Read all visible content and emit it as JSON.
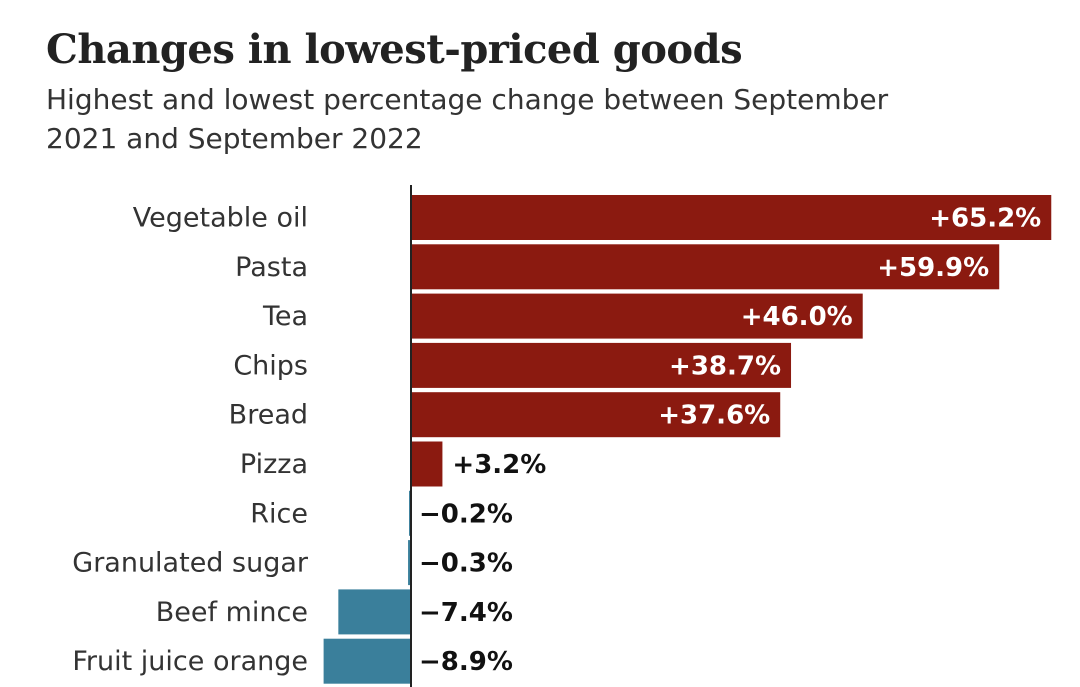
{
  "title": "Changes in lowest-priced goods",
  "subtitle": "Highest and lowest percentage change between September 2021 and September 2022",
  "colors": {
    "positive": "#8b1a10",
    "negative": "#3a7f9b",
    "axis": "#222222",
    "label_inside": "#ffffff",
    "label_outside": "#111111"
  },
  "chart_data": {
    "type": "bar",
    "orientation": "horizontal",
    "title": "Changes in lowest-priced goods",
    "subtitle": "Highest and lowest percentage change between September 2021 and September 2022",
    "xlabel": "",
    "ylabel": "",
    "unit": "%",
    "categories": [
      "Vegetable oil",
      "Pasta",
      "Tea",
      "Chips",
      "Bread",
      "Pizza",
      "Rice",
      "Granulated sugar",
      "Beef mince",
      "Fruit juice orange"
    ],
    "values": [
      65.2,
      59.9,
      46.0,
      38.7,
      37.6,
      3.2,
      -0.2,
      -0.3,
      -7.4,
      -8.9
    ],
    "value_labels": [
      "+65.2%",
      "+59.9%",
      "+46.0%",
      "+38.7%",
      "+37.6%",
      "+3.2%",
      "−0.2%",
      "−0.3%",
      "−7.4%",
      "−8.9%"
    ],
    "xlim": [
      -10,
      65.2
    ],
    "grid": false
  }
}
